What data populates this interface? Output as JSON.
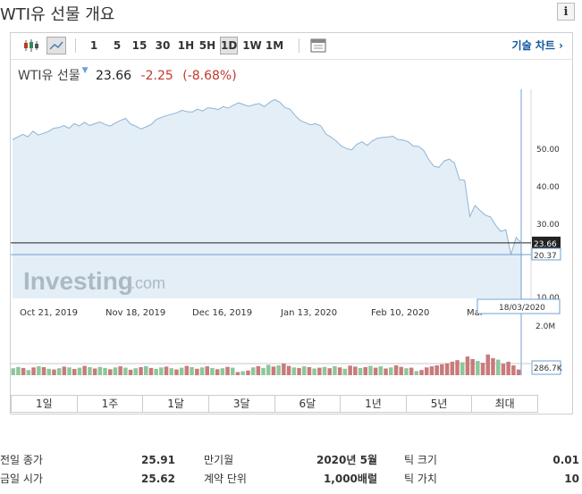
{
  "page": {
    "title": "WTI유 선물 개요",
    "info_label": "i"
  },
  "toolbar": {
    "periods": [
      "1",
      "5",
      "15",
      "30",
      "1H",
      "5H",
      "1D",
      "1W",
      "1M"
    ],
    "active_period": "1D",
    "tech_chart_label": "기술 차트 ›"
  },
  "quote": {
    "name": "WTI유 선물",
    "price": "23.66",
    "change": "-2.25",
    "change_pct": "(-8.68%)"
  },
  "chart_data": {
    "type": "line",
    "x_labels": [
      "Oct 21, 2019",
      "Nov 18, 2019",
      "Dec 16, 2019",
      "Jan 13, 2020",
      "Feb 10, 2020",
      "Mar"
    ],
    "y_ticks": [
      "50.00",
      "40.00",
      "30.00",
      "10.00"
    ],
    "ylim": [
      8,
      67
    ],
    "last_price_label": "23.66",
    "crosshair_value_label": "20.37",
    "crosshair_date_label": "18/03/2020",
    "watermark_main": "Investing",
    "watermark_sub": ".com",
    "volume_scale_labels": [
      "2.0M",
      "286.7K"
    ],
    "volume_max": 2.0,
    "series": [
      {
        "values": [
          52.8,
          53.5,
          54.3,
          53.6,
          55.2,
          54.1,
          54.6,
          55.1,
          56.0,
          56.2,
          56.8,
          56.0,
          57.3,
          56.7,
          57.7,
          56.8,
          57.3,
          57.8,
          57.1,
          56.6,
          57.5,
          58.2,
          58.8,
          57.2,
          56.6,
          55.8,
          56.4,
          57.1,
          58.5,
          59.1,
          59.6,
          60.0,
          60.4,
          61.1,
          60.7,
          60.6,
          61.4,
          60.9,
          61.8,
          61.6,
          61.3,
          62.1,
          61.7,
          62.5,
          63.2,
          62.7,
          62.2,
          62.7,
          63.0,
          62.1,
          63.3,
          64.1,
          63.4,
          61.9,
          61.4,
          59.6,
          58.2,
          57.6,
          57.0,
          57.3,
          56.7,
          54.4,
          53.5,
          52.4,
          51.0,
          50.3,
          49.9,
          51.5,
          52.2,
          51.2,
          52.4,
          53.2,
          53.4,
          53.5,
          53.8,
          52.8,
          52.7,
          52.2,
          51.0,
          50.9,
          49.8,
          47.2,
          45.3,
          45.0,
          46.8,
          47.3,
          46.2,
          41.5,
          41.3,
          31.1,
          34.2,
          32.8,
          31.5,
          31.0,
          28.7,
          26.9,
          27.4,
          20.4,
          25.2,
          23.7
        ]
      }
    ],
    "volume": [
      {
        "v": 0.27,
        "up": true
      },
      {
        "v": 0.32,
        "up": true
      },
      {
        "v": 0.28,
        "up": false
      },
      {
        "v": 0.2,
        "up": true
      },
      {
        "v": 0.3,
        "up": false
      },
      {
        "v": 0.35,
        "up": true
      },
      {
        "v": 0.31,
        "up": false
      },
      {
        "v": 0.25,
        "up": true
      },
      {
        "v": 0.22,
        "up": false
      },
      {
        "v": 0.27,
        "up": true
      },
      {
        "v": 0.33,
        "up": false
      },
      {
        "v": 0.3,
        "up": true
      },
      {
        "v": 0.24,
        "up": false
      },
      {
        "v": 0.29,
        "up": true
      },
      {
        "v": 0.36,
        "up": false
      },
      {
        "v": 0.31,
        "up": true
      },
      {
        "v": 0.26,
        "up": false
      },
      {
        "v": 0.32,
        "up": true
      },
      {
        "v": 0.28,
        "up": true
      },
      {
        "v": 0.23,
        "up": false
      },
      {
        "v": 0.3,
        "up": true
      },
      {
        "v": 0.34,
        "up": false
      },
      {
        "v": 0.29,
        "up": true
      },
      {
        "v": 0.21,
        "up": false
      },
      {
        "v": 0.27,
        "up": true
      },
      {
        "v": 0.31,
        "up": false
      },
      {
        "v": 0.35,
        "up": true
      },
      {
        "v": 0.28,
        "up": false
      },
      {
        "v": 0.24,
        "up": true
      },
      {
        "v": 0.3,
        "up": true
      },
      {
        "v": 0.33,
        "up": false
      },
      {
        "v": 0.27,
        "up": true
      },
      {
        "v": 0.22,
        "up": false
      },
      {
        "v": 0.29,
        "up": true
      },
      {
        "v": 0.36,
        "up": false
      },
      {
        "v": 0.31,
        "up": true
      },
      {
        "v": 0.25,
        "up": false
      },
      {
        "v": 0.3,
        "up": true
      },
      {
        "v": 0.34,
        "up": false
      },
      {
        "v": 0.28,
        "up": true
      },
      {
        "v": 0.23,
        "up": false
      },
      {
        "v": 0.27,
        "up": true
      },
      {
        "v": 0.32,
        "up": false
      },
      {
        "v": 0.29,
        "up": true
      },
      {
        "v": 0.12,
        "up": false
      },
      {
        "v": 0.15,
        "up": true
      },
      {
        "v": 0.18,
        "up": false
      },
      {
        "v": 0.3,
        "up": true
      },
      {
        "v": 0.35,
        "up": false
      },
      {
        "v": 0.28,
        "up": true
      },
      {
        "v": 0.4,
        "up": true
      },
      {
        "v": 0.33,
        "up": false
      },
      {
        "v": 0.38,
        "up": true
      },
      {
        "v": 0.45,
        "up": false
      },
      {
        "v": 0.36,
        "up": false
      },
      {
        "v": 0.3,
        "up": true
      },
      {
        "v": 0.28,
        "up": false
      },
      {
        "v": 0.34,
        "up": true
      },
      {
        "v": 0.31,
        "up": false
      },
      {
        "v": 0.26,
        "up": true
      },
      {
        "v": 0.29,
        "up": false
      },
      {
        "v": 0.32,
        "up": true
      },
      {
        "v": 0.27,
        "up": false
      },
      {
        "v": 0.35,
        "up": true
      },
      {
        "v": 0.3,
        "up": false
      },
      {
        "v": 0.25,
        "up": true
      },
      {
        "v": 0.37,
        "up": false
      },
      {
        "v": 0.33,
        "up": false
      },
      {
        "v": 0.28,
        "up": true
      },
      {
        "v": 0.31,
        "up": false
      },
      {
        "v": 0.36,
        "up": true
      },
      {
        "v": 0.29,
        "up": false
      },
      {
        "v": 0.34,
        "up": true
      },
      {
        "v": 0.26,
        "up": false
      },
      {
        "v": 0.3,
        "up": true
      },
      {
        "v": 0.38,
        "up": false
      },
      {
        "v": 0.32,
        "up": false
      },
      {
        "v": 0.27,
        "up": true
      },
      {
        "v": 0.29,
        "up": false
      },
      {
        "v": 0.16,
        "up": true
      },
      {
        "v": 0.2,
        "up": false
      },
      {
        "v": 0.3,
        "up": false
      },
      {
        "v": 0.34,
        "up": false
      },
      {
        "v": 0.38,
        "up": false
      },
      {
        "v": 0.42,
        "up": false
      },
      {
        "v": 0.46,
        "up": false
      },
      {
        "v": 0.52,
        "up": false
      },
      {
        "v": 0.58,
        "up": false
      },
      {
        "v": 0.5,
        "up": true
      },
      {
        "v": 0.72,
        "up": false
      },
      {
        "v": 0.62,
        "up": false
      },
      {
        "v": 0.55,
        "up": true
      },
      {
        "v": 0.48,
        "up": false
      },
      {
        "v": 0.8,
        "up": false
      },
      {
        "v": 0.66,
        "up": false
      },
      {
        "v": 0.6,
        "up": true
      },
      {
        "v": 0.44,
        "up": false
      },
      {
        "v": 0.52,
        "up": false
      },
      {
        "v": 0.38,
        "up": false
      },
      {
        "v": 0.22,
        "up": false
      }
    ]
  },
  "range_buttons": [
    "1일",
    "1주",
    "1달",
    "3달",
    "6달",
    "1년",
    "5년",
    "최대"
  ],
  "stats": [
    {
      "label": "전일 종가",
      "value": "25.91"
    },
    {
      "label": "만기월",
      "value": "2020년 5월"
    },
    {
      "label": "틱 크기",
      "value": "0.01"
    },
    {
      "label": "금일 시가",
      "value": "25.62"
    },
    {
      "label": "계약 단위",
      "value": "1,000배럴"
    },
    {
      "label": "틱 가치",
      "value": "10"
    }
  ],
  "colors": {
    "line": "#8fb3d3",
    "area": "#e4eef7",
    "vol_up": "#8cc79b",
    "vol_down": "#c97a7a",
    "crosshair": "#6e9fd0",
    "negative": "#c0392b",
    "link": "#1256a0"
  },
  "icons": {
    "candles": "candlestick-icon",
    "line": "line-chart-icon",
    "calendar": "calendar-icon"
  }
}
